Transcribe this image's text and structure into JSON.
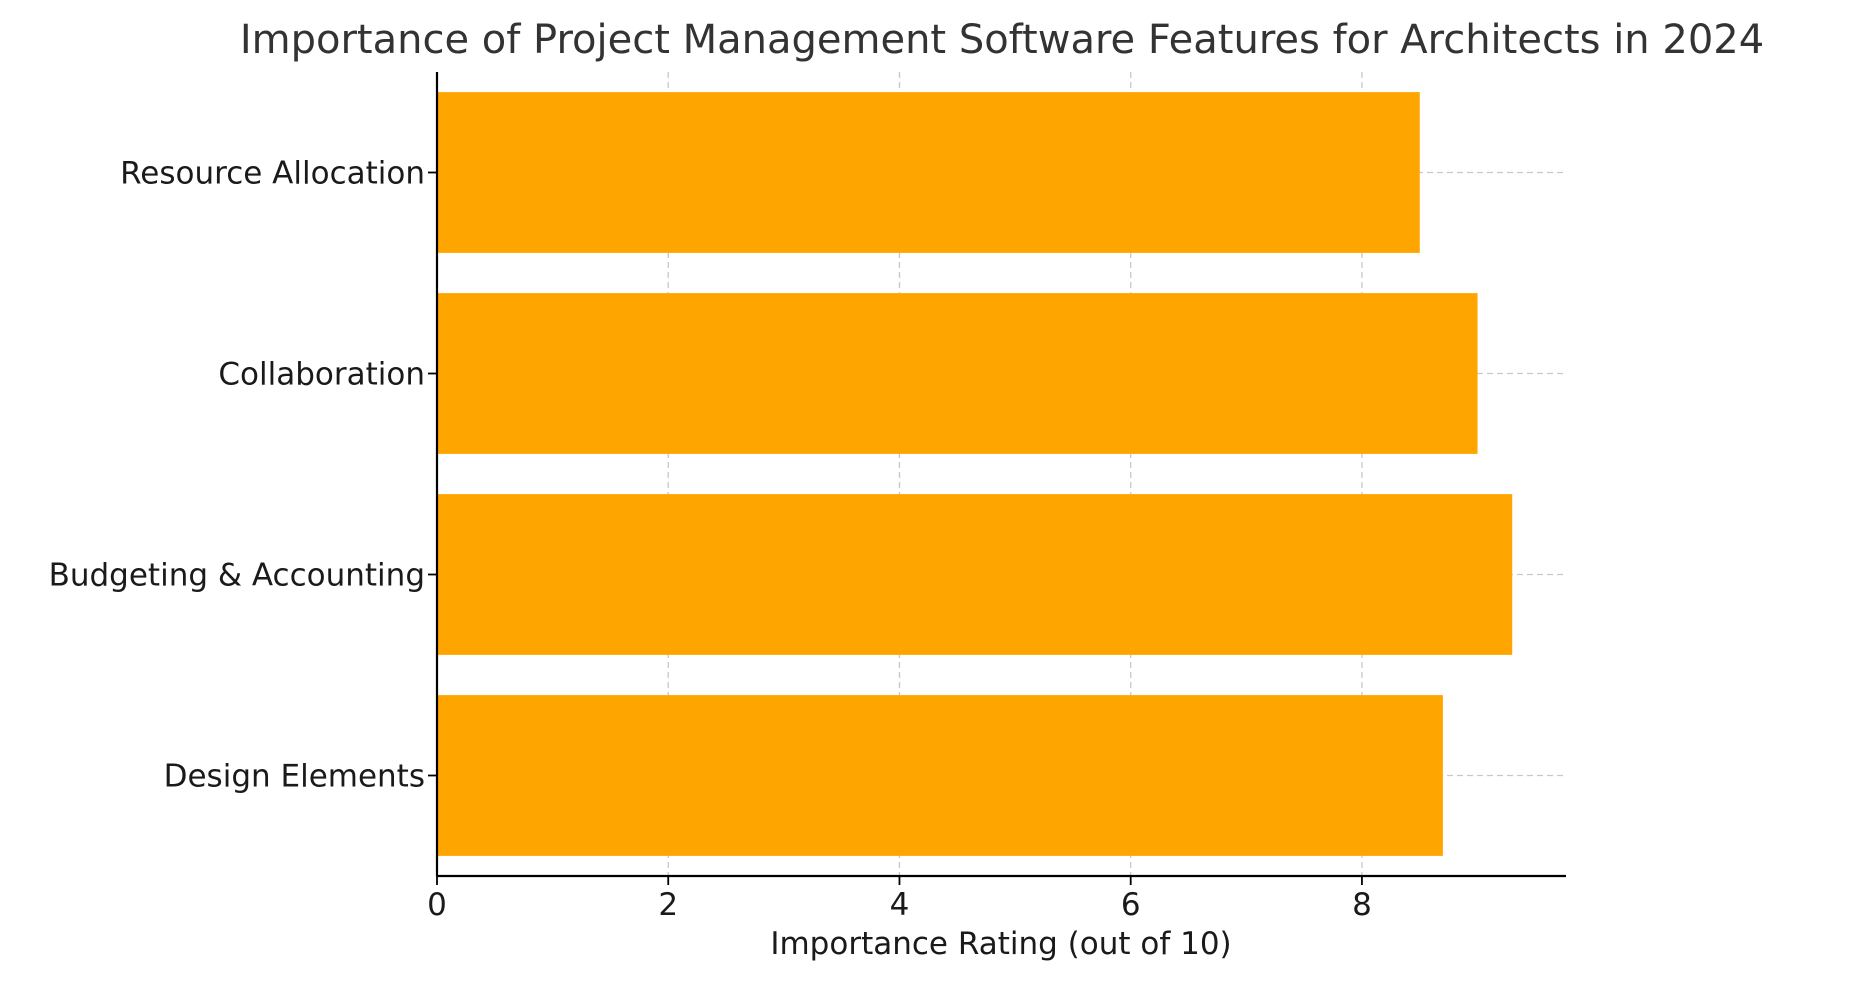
{
  "chart_data": {
    "type": "bar",
    "orientation": "horizontal",
    "title": "Importance of Project Management Software Features for Architects in 2024",
    "xlabel": "Importance Rating (out of 10)",
    "ylabel": "",
    "categories": [
      "Design Elements",
      "Budgeting & Accounting",
      "Collaboration",
      "Resource Allocation"
    ],
    "values": [
      8.7,
      9.3,
      9.0,
      8.5
    ],
    "xlim": [
      0,
      9.765
    ],
    "xticks": [
      0,
      2,
      4,
      6,
      8
    ],
    "grid": true,
    "colors": {
      "bar": "#ffa500",
      "axis": "#000000",
      "grid": "#c8c8c8",
      "text": "#1a1a1a",
      "title": "#333333"
    }
  }
}
